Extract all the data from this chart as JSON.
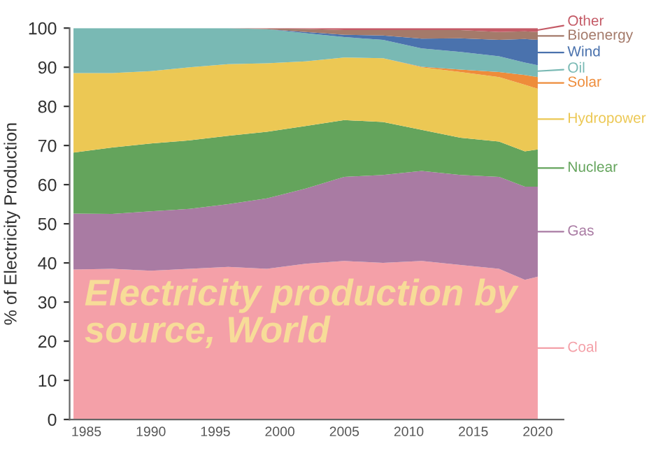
{
  "chart_data": {
    "type": "area",
    "stacked": true,
    "title": "Electricity production by source, World",
    "ylabel": "% of Electricity Production",
    "x": [
      1984,
      1987,
      1990,
      1993,
      1996,
      1999,
      2002,
      2005,
      2008,
      2011,
      2014,
      2017,
      2019,
      2020
    ],
    "xlim": [
      1983.7,
      2022
    ],
    "xticks": [
      1985,
      1990,
      1995,
      2000,
      2005,
      2010,
      2015,
      2020
    ],
    "ylim": [
      0,
      100
    ],
    "yticks": [
      0,
      10,
      20,
      30,
      40,
      50,
      60,
      70,
      80,
      90,
      100
    ],
    "grid": false,
    "legend": "right",
    "series": [
      {
        "name": "Coal",
        "color": "#f4a0a8",
        "values": [
          38.3,
          38.5,
          38,
          38.5,
          39,
          38.5,
          39.8,
          40.5,
          40,
          40.5,
          39.5,
          38.5,
          35.7,
          36.5
        ]
      },
      {
        "name": "Gas",
        "color": "#a97ba3",
        "values": [
          14.3,
          14,
          15.2,
          15.3,
          16,
          18,
          19.2,
          21.5,
          22.5,
          23,
          23,
          23.5,
          23.8,
          23
        ]
      },
      {
        "name": "Nuclear",
        "color": "#64a45c",
        "values": [
          15.6,
          17,
          17.3,
          17.5,
          17.5,
          17,
          16,
          14.5,
          13.5,
          10.5,
          9.5,
          9,
          9,
          9.5
        ]
      },
      {
        "name": "Hydropower",
        "color": "#ecc854",
        "values": [
          20.3,
          19,
          18.5,
          18.7,
          18.3,
          17.5,
          16.5,
          16,
          16.3,
          16,
          16.8,
          16.5,
          17,
          15.5
        ]
      },
      {
        "name": "Solar",
        "color": "#ee8c3a",
        "values": [
          0,
          0,
          0,
          0,
          0,
          0,
          0,
          0,
          0,
          0.1,
          0.6,
          1.3,
          2.5,
          3
        ]
      },
      {
        "name": "Oil",
        "color": "#79b9b4",
        "values": [
          11.5,
          11.5,
          11,
          10,
          9.2,
          8.7,
          7.2,
          5.2,
          4.7,
          4.7,
          4.5,
          4,
          3.2,
          3
        ]
      },
      {
        "name": "Wind",
        "color": "#4a72ad",
        "values": [
          0,
          0,
          0,
          0,
          0,
          0,
          0.3,
          0.6,
          1.1,
          2.5,
          3.5,
          4.2,
          6,
          6.5
        ]
      },
      {
        "name": "Bioenergy",
        "color": "#a47a6a",
        "values": [
          0,
          0,
          0,
          0,
          0,
          0.2,
          0.8,
          1.2,
          1.4,
          2.2,
          2.1,
          2,
          2,
          2
        ]
      },
      {
        "name": "Other",
        "color": "#c45a66",
        "values": [
          0,
          0,
          0,
          0,
          0,
          0.1,
          0.2,
          0.5,
          0.5,
          0.5,
          0.5,
          1.0,
          0.8,
          1
        ]
      }
    ]
  }
}
